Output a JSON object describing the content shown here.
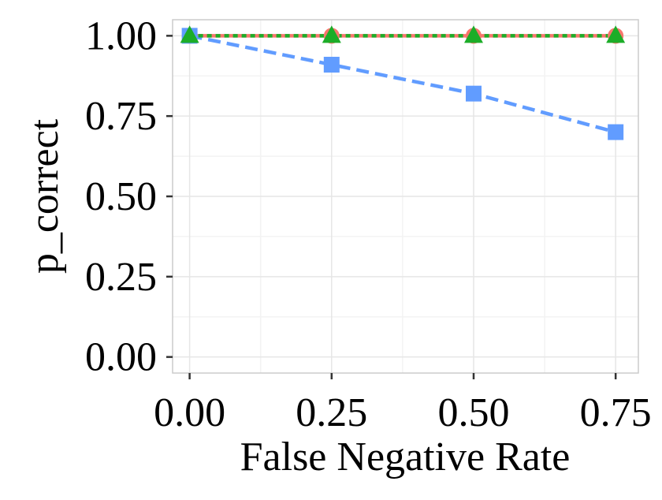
{
  "chart_data": {
    "type": "line",
    "title": "",
    "xlabel": "False Negative Rate",
    "ylabel": "p_correct",
    "x": [
      0.0,
      0.25,
      0.5,
      0.75
    ],
    "xlim": [
      -0.03,
      0.79
    ],
    "ylim": [
      -0.05,
      1.05
    ],
    "x_ticks": [
      0.0,
      0.25,
      0.5,
      0.75
    ],
    "x_tick_labels": [
      "0.00",
      "0.25",
      "0.50",
      "0.75"
    ],
    "y_ticks": [
      0.0,
      0.25,
      0.5,
      0.75,
      1.0
    ],
    "y_tick_labels": [
      "0.00",
      "0.25",
      "0.50",
      "0.75",
      "1.00"
    ],
    "grid": true,
    "legend": "none",
    "series": [
      {
        "values": [
          1.0,
          1.0,
          1.0,
          1.0
        ],
        "color": "#F8766D",
        "line_style": "solid",
        "marker": "circle"
      },
      {
        "values": [
          1.0,
          0.91,
          0.82,
          0.7
        ],
        "color": "#619CFF",
        "line_style": "dashed",
        "marker": "square"
      },
      {
        "values": [
          1.0,
          1.0,
          1.0,
          1.0
        ],
        "color": "#1CAD28",
        "line_style": "dotted",
        "marker": "triangle"
      }
    ],
    "colors": {
      "panel_border": "#CCCCCC",
      "grid_major": "#E6E6E6",
      "grid_minor": "#F3F3F3",
      "axis_ticks": "#333333"
    }
  }
}
